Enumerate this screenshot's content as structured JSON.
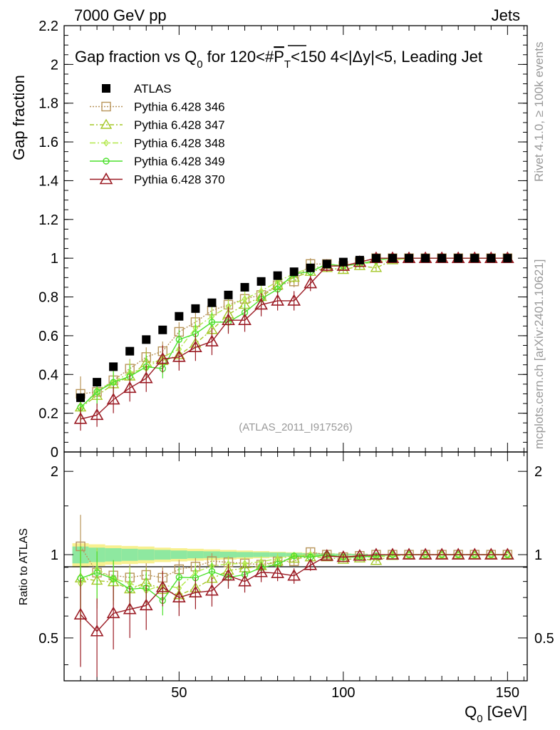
{
  "header": {
    "left": "7000 GeV pp",
    "right": "Jets"
  },
  "side_labels": {
    "rivet": "Rivet 4.1.0, ≥ 100k events",
    "mcplots": "mcplots.cern.ch [arXiv:2401.10621]"
  },
  "chart_data": {
    "type": "scatter",
    "title": "Gap fraction vs Q₀ for 120<#P̅T<150  4<|Δy|<5, Leading Jet",
    "title_parts": {
      "pre": "Gap fraction vs Q",
      "sub0": "0",
      "mid": " for 120<#",
      "p": "P",
      "t": "T",
      "post": "<150  4<|Δy|<5, Leading Jet"
    },
    "analysis_label": "(ATLAS_2011_I917526)",
    "xlabel": "Q₀ [GeV]",
    "xlabel_parts": {
      "main": "Q",
      "sub": "0",
      "unit": " [GeV]"
    },
    "ylabel": "Gap fraction",
    "ratio_ylabel": "Ratio to ATLAS",
    "xlim": [
      15,
      156
    ],
    "ylim": [
      0,
      2.2
    ],
    "ratio_ylim": [
      0.35,
      2.35
    ],
    "x_ticks": [
      "50",
      "100",
      "150"
    ],
    "y_ticks": [
      "0",
      "0.2",
      "0.4",
      "0.6",
      "0.8",
      "1",
      "1.2",
      "1.4",
      "1.6",
      "1.8",
      "2",
      "2.2"
    ],
    "ratio_y_ticks": [
      "0.5",
      "1",
      "2"
    ],
    "x": [
      20,
      25,
      30,
      35,
      40,
      45,
      50,
      55,
      60,
      65,
      70,
      75,
      80,
      85,
      90,
      95,
      100,
      105,
      110,
      115,
      120,
      125,
      130,
      135,
      140,
      145,
      150
    ],
    "data": {
      "name": "ATLAS",
      "color": "#000000",
      "values": [
        0.28,
        0.36,
        0.44,
        0.52,
        0.58,
        0.63,
        0.7,
        0.74,
        0.77,
        0.81,
        0.85,
        0.88,
        0.91,
        0.93,
        0.95,
        0.97,
        0.98,
        0.99,
        1.0,
        1.0,
        1.0,
        1.0,
        1.0,
        1.0,
        1.0,
        1.0,
        1.0
      ],
      "errors": [
        0.02,
        0.02,
        0.02,
        0.02,
        0.02,
        0.02,
        0.02,
        0.02,
        0.02,
        0.02,
        0.02,
        0.02,
        0.02,
        0.01,
        0.01,
        0.01,
        0.01,
        0.01,
        0.0,
        0.0,
        0.0,
        0.0,
        0.0,
        0.0,
        0.0,
        0.0,
        0.0
      ]
    },
    "series": [
      {
        "name": "Pythia 6.428 346",
        "color": "#b8955a",
        "marker": "square",
        "dash": "2,2",
        "values": [
          0.3,
          0.31,
          0.37,
          0.43,
          0.49,
          0.52,
          0.62,
          0.67,
          0.73,
          0.76,
          0.79,
          0.81,
          0.86,
          0.88,
          0.97,
          0.97,
          0.96,
          0.98,
          1.0,
          1.0,
          1.0,
          1.0,
          1.0,
          1.0,
          1.0,
          1.0,
          1.0
        ],
        "errors": [
          0.09,
          0.07,
          0.05,
          0.05,
          0.05,
          0.05,
          0.05,
          0.05,
          0.05,
          0.04,
          0.04,
          0.04,
          0.04,
          0.03,
          0.03,
          0.02,
          0.02,
          0.02,
          0.01,
          0.0,
          0.0,
          0.0,
          0.0,
          0.0,
          0.0,
          0.0,
          0.0
        ]
      },
      {
        "name": "Pythia 6.428 347",
        "color": "#a5c828",
        "marker": "triangle",
        "dash": "6,3,2,3",
        "values": [
          0.23,
          0.29,
          0.35,
          0.39,
          0.46,
          0.47,
          0.5,
          0.56,
          0.63,
          0.71,
          0.76,
          0.8,
          0.86,
          0.9,
          0.93,
          0.95,
          0.94,
          0.96,
          0.95,
          0.99,
          1.0,
          1.0,
          1.0,
          1.0,
          1.0,
          1.0,
          1.0
        ],
        "errors": [
          0.07,
          0.06,
          0.06,
          0.06,
          0.06,
          0.05,
          0.05,
          0.05,
          0.05,
          0.05,
          0.04,
          0.04,
          0.04,
          0.03,
          0.03,
          0.02,
          0.02,
          0.02,
          0.02,
          0.01,
          0.0,
          0.0,
          0.0,
          0.0,
          0.0,
          0.0,
          0.0
        ]
      },
      {
        "name": "Pythia 6.428 348",
        "color": "#b2e84a",
        "marker": "diamond",
        "dash": "8,3,2,3",
        "values": [
          0.22,
          0.32,
          0.36,
          0.41,
          0.43,
          0.49,
          0.53,
          0.64,
          0.7,
          0.75,
          0.79,
          0.83,
          0.88,
          0.92,
          0.95,
          0.96,
          0.96,
          0.97,
          0.98,
          0.99,
          1.0,
          1.0,
          1.0,
          1.0,
          1.0,
          1.0,
          1.0
        ],
        "errors": [
          0.07,
          0.06,
          0.06,
          0.06,
          0.06,
          0.05,
          0.05,
          0.05,
          0.05,
          0.05,
          0.04,
          0.04,
          0.04,
          0.03,
          0.03,
          0.02,
          0.02,
          0.02,
          0.02,
          0.01,
          0.0,
          0.0,
          0.0,
          0.0,
          0.0,
          0.0,
          0.0
        ]
      },
      {
        "name": "Pythia 6.428 349",
        "color": "#4ce02c",
        "marker": "circle",
        "dash": "",
        "values": [
          0.23,
          0.31,
          0.36,
          0.39,
          0.44,
          0.43,
          0.58,
          0.61,
          0.67,
          0.67,
          0.72,
          0.79,
          0.84,
          0.92,
          0.93,
          0.97,
          0.96,
          0.97,
          0.99,
          1.0,
          1.0,
          1.0,
          1.0,
          1.0,
          1.0,
          1.0,
          1.0
        ],
        "errors": [
          0.07,
          0.06,
          0.06,
          0.06,
          0.06,
          0.05,
          0.05,
          0.05,
          0.05,
          0.05,
          0.04,
          0.04,
          0.04,
          0.03,
          0.03,
          0.02,
          0.02,
          0.02,
          0.02,
          0.01,
          0.0,
          0.0,
          0.0,
          0.0,
          0.0,
          0.0,
          0.0
        ]
      },
      {
        "name": "Pythia 6.428 370",
        "color": "#9b1b24",
        "marker": "triangle-large",
        "dash": "",
        "values": [
          0.17,
          0.19,
          0.27,
          0.33,
          0.38,
          0.48,
          0.49,
          0.54,
          0.57,
          0.68,
          0.68,
          0.76,
          0.78,
          0.78,
          0.87,
          0.96,
          0.96,
          0.98,
          1.0,
          1.0,
          1.0,
          1.0,
          1.0,
          1.0,
          1.0,
          1.0,
          1.0
        ],
        "errors": [
          0.06,
          0.06,
          0.07,
          0.07,
          0.07,
          0.07,
          0.07,
          0.07,
          0.07,
          0.07,
          0.06,
          0.06,
          0.05,
          0.05,
          0.04,
          0.03,
          0.02,
          0.02,
          0.01,
          0.0,
          0.0,
          0.0,
          0.0,
          0.0,
          0.0,
          0.0,
          0.0
        ]
      }
    ],
    "ratio_band": {
      "inner_color": "#8ee8a0",
      "outer_color": "#f8f090",
      "inner_halfwidth": [
        0.07,
        0.06,
        0.055,
        0.05,
        0.045,
        0.04,
        0.035,
        0.03,
        0.028,
        0.025,
        0.022,
        0.02,
        0.018,
        0.015,
        0.012,
        0.01,
        0.008,
        0.006,
        0.0,
        0.0,
        0.0,
        0.0,
        0.0,
        0.0,
        0.0,
        0.0,
        0.0
      ],
      "outer_halfwidth": [
        0.1,
        0.09,
        0.08,
        0.075,
        0.07,
        0.06,
        0.055,
        0.05,
        0.045,
        0.04,
        0.035,
        0.03,
        0.025,
        0.02,
        0.016,
        0.013,
        0.01,
        0.008,
        0.0,
        0.0,
        0.0,
        0.0,
        0.0,
        0.0,
        0.0,
        0.0,
        0.0
      ]
    }
  }
}
